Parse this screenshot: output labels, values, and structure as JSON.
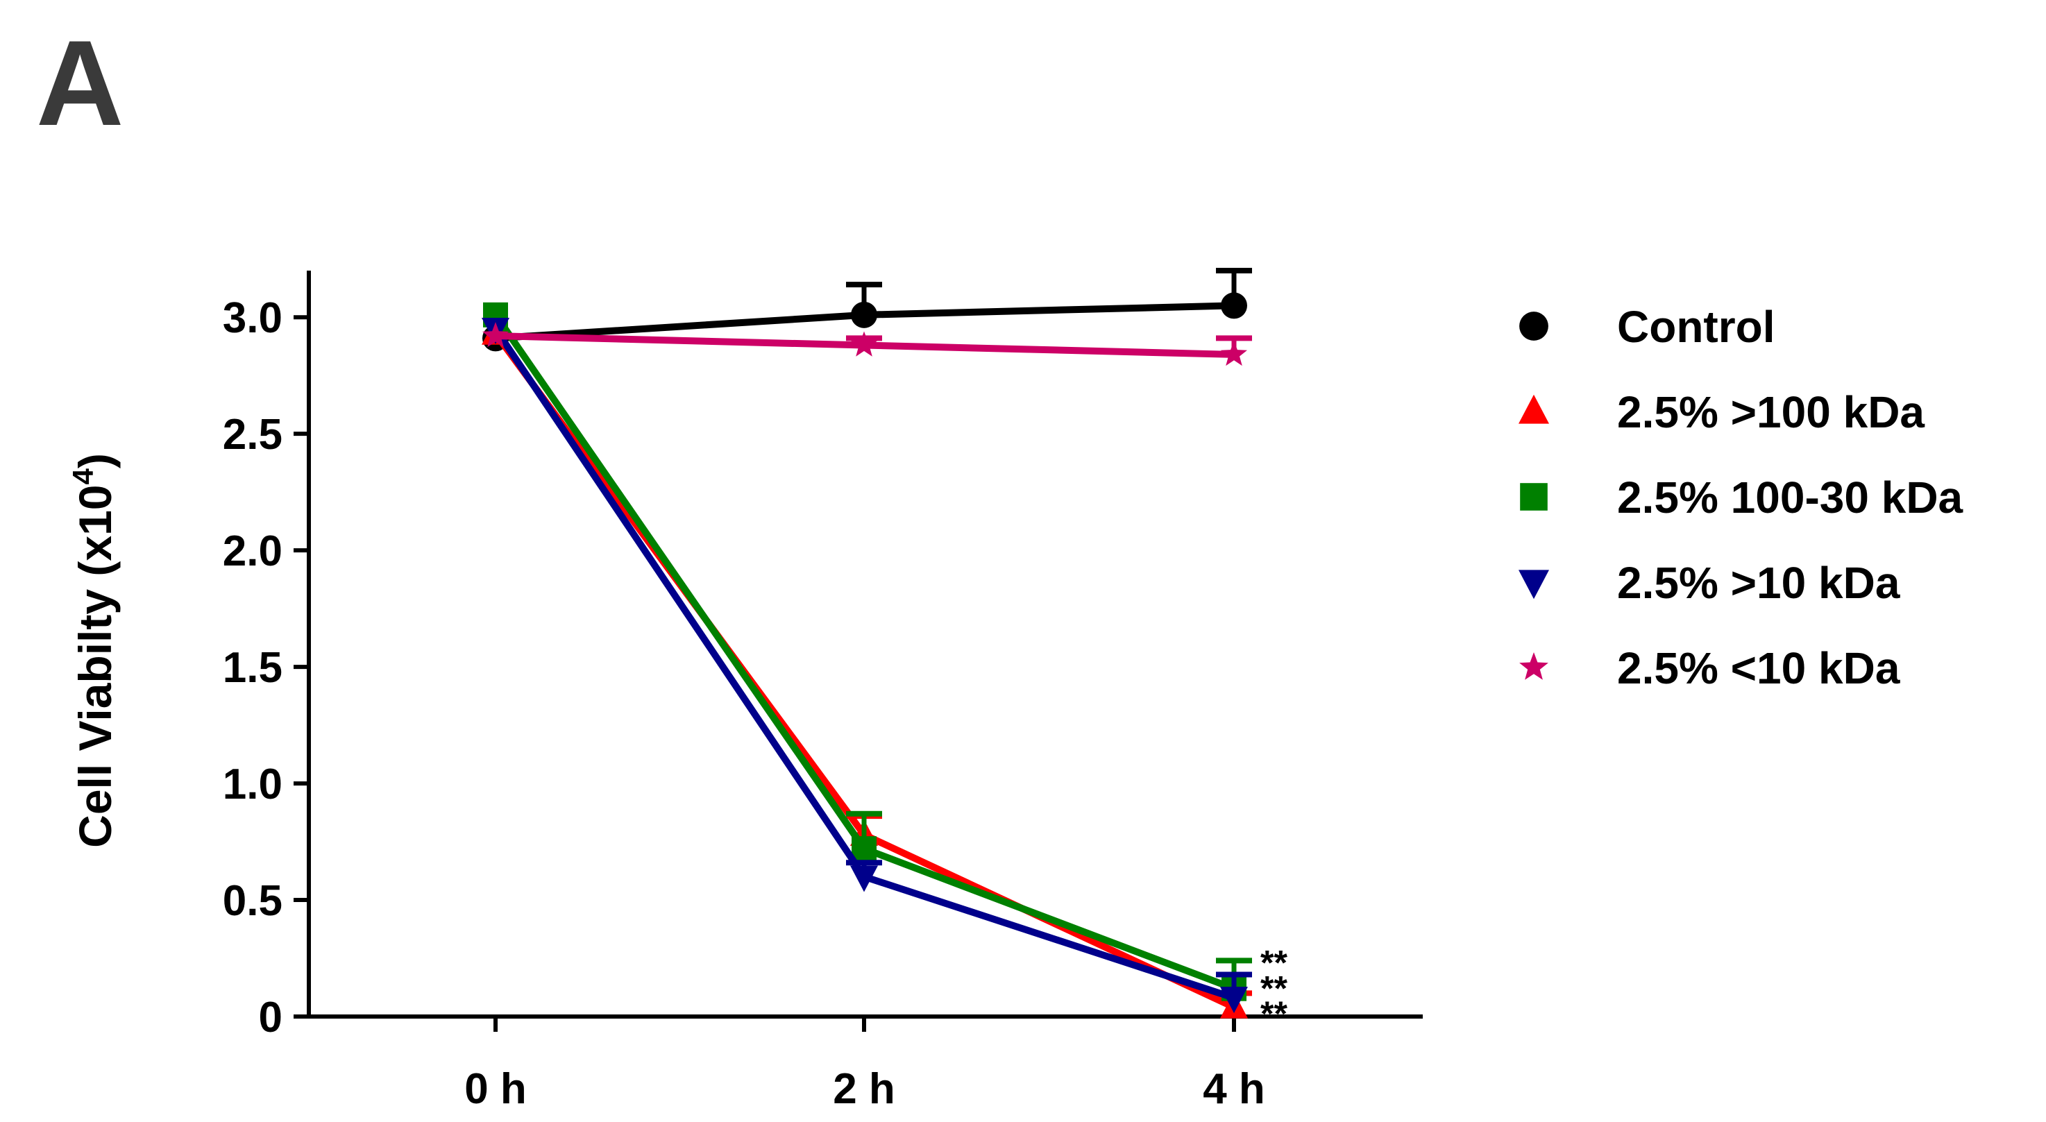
{
  "panel_label": "A",
  "chart_data": {
    "type": "line",
    "title": "",
    "xlabel": "",
    "ylabel": "Cell Viabilty (x10",
    "ylabel_superscript": "4",
    "ylabel_suffix": ")",
    "categories": [
      "0 h",
      "2 h",
      "4 h"
    ],
    "ylim": [
      0,
      3.2
    ],
    "yticks": [
      0,
      0.5,
      1.0,
      1.5,
      2.0,
      2.5,
      3.0
    ],
    "ytick_labels": [
      "0",
      "0.5",
      "1.0",
      "1.5",
      "2.0",
      "2.5",
      "3.0"
    ],
    "grid": false,
    "legend_position": "right",
    "series": [
      {
        "name": "Control",
        "marker": "circle",
        "color": "#000000",
        "values": [
          2.91,
          3.01,
          3.05
        ],
        "error": [
          0.0,
          0.13,
          0.15
        ]
      },
      {
        "name": "2.5% >100 kDa",
        "marker": "triangle-up",
        "color": "#ff0000",
        "values": [
          2.93,
          0.78,
          0.04
        ],
        "error": [
          0.0,
          0.08,
          0.06
        ]
      },
      {
        "name": "2.5% 100-30 kDa",
        "marker": "square",
        "color": "#008000",
        "values": [
          3.01,
          0.72,
          0.12
        ],
        "error": [
          0.0,
          0.15,
          0.12
        ]
      },
      {
        "name": "2.5% >10 kDa",
        "marker": "triangle-down",
        "color": "#00008b",
        "values": [
          2.95,
          0.6,
          0.08
        ],
        "error": [
          0.0,
          0.06,
          0.1
        ]
      },
      {
        "name": "2.5% <10 kDa",
        "marker": "star",
        "color": "#cc0066",
        "values": [
          2.92,
          2.88,
          2.84
        ],
        "error": [
          0.0,
          0.03,
          0.07
        ]
      }
    ],
    "annotations": [
      {
        "category": "4 h",
        "text": "**",
        "y": 0.27
      },
      {
        "category": "4 h",
        "text": "**",
        "y": 0.16
      },
      {
        "category": "4 h",
        "text": "**",
        "y": 0.05
      }
    ]
  }
}
